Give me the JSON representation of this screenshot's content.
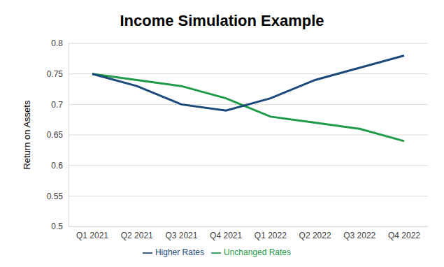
{
  "chart_data": {
    "type": "line",
    "title": "Income Simulation Example",
    "y_label": "Return on Assets",
    "categories": [
      "Q1 2021",
      "Q2 2021",
      "Q3 2021",
      "Q4 2021",
      "Q1 2022",
      "Q2 2022",
      "Q3 2022",
      "Q4 2022"
    ],
    "series": [
      {
        "name": "Unchanged Rates",
        "color": "#1e9a48",
        "values": [
          0.75,
          0.74,
          0.73,
          0.71,
          0.68,
          0.67,
          0.66,
          0.64
        ]
      },
      {
        "name": "Higher Rates",
        "color": "#1b4a7a",
        "values": [
          0.75,
          0.73,
          0.7,
          0.69,
          0.71,
          0.74,
          0.76,
          0.78
        ]
      }
    ],
    "ylim": [
      0.5,
      0.8
    ],
    "yticks": [
      0.5,
      0.55,
      0.6,
      0.65,
      0.7,
      0.75,
      0.8
    ],
    "grid": true,
    "legend": "bottom"
  }
}
